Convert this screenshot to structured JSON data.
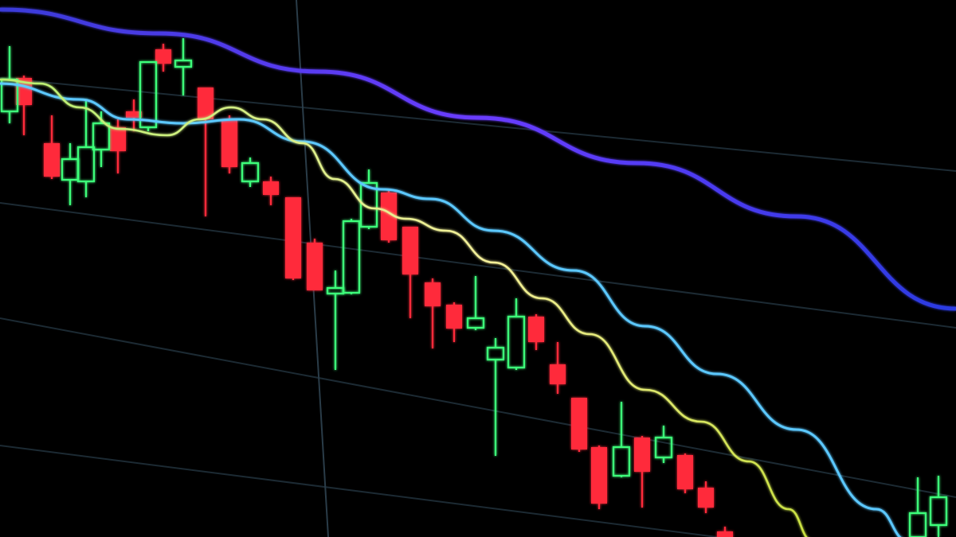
{
  "colors": {
    "background": "#000000",
    "bullish": "#3dff7a",
    "bearish": "#ff2a3a",
    "ma_long": "#5a3cff",
    "ma_mid": "#5cc8ff",
    "ma_short": "#f0f07a",
    "grid": "#1c2a33"
  }
}
